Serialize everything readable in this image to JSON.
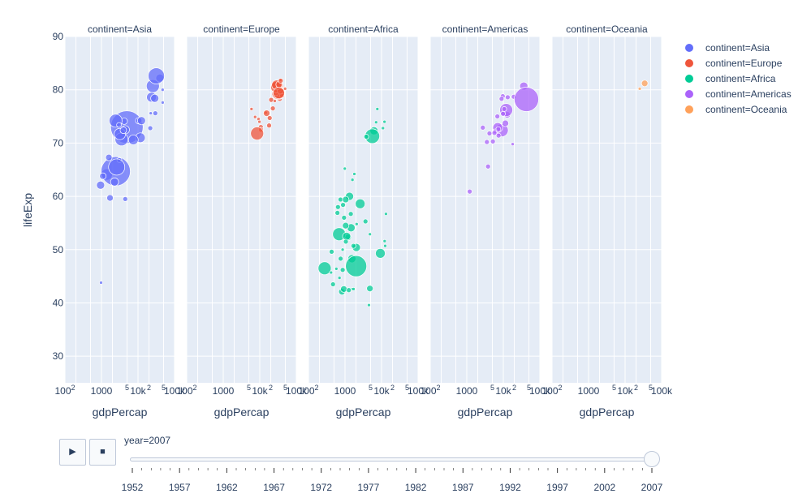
{
  "chart_data": {
    "type": "scatter",
    "subtype": "bubble-faceted",
    "x_label": "gdpPercap",
    "y_label": "lifeExp",
    "x_scale": "log",
    "x_range": [
      100,
      100000
    ],
    "y_range": [
      25,
      90
    ],
    "y_ticks": [
      30,
      40,
      50,
      60,
      70,
      80,
      90
    ],
    "x_tick_labels": [
      {
        "base": "100",
        "sup": "2"
      },
      {
        "base": "1000",
        "sup": ""
      },
      {
        "base": "",
        "sup": "5"
      },
      {
        "base": "10k",
        "sup": ""
      },
      {
        "base": "",
        "sup": "2"
      },
      {
        "base": "",
        "sup": "5"
      },
      {
        "base": "100k",
        "sup": ""
      }
    ],
    "grid": true,
    "legend_position": "right",
    "facets": [
      {
        "title": "continent=Asia",
        "legend": "continent=Asia",
        "color": "#636efa",
        "points": [
          [
            974,
            43.8,
            2
          ],
          [
            29796,
            75.6,
            3
          ],
          [
            1391,
            64.1,
            7
          ],
          [
            1713,
            59.7,
            4
          ],
          [
            4959,
            73.0,
            20
          ],
          [
            39725,
            82.2,
            5
          ],
          [
            2452,
            64.7,
            18
          ],
          [
            3541,
            70.7,
            8
          ],
          [
            11606,
            71.0,
            6
          ],
          [
            4471,
            59.5,
            3
          ],
          [
            25523,
            80.7,
            8
          ],
          [
            31656,
            82.6,
            10
          ],
          [
            4519,
            72.5,
            5
          ],
          [
            1593,
            67.3,
            4
          ],
          [
            23348,
            78.6,
            6
          ],
          [
            47307,
            77.6,
            2
          ],
          [
            10461,
            74.2,
            4
          ],
          [
            12452,
            74.2,
            5
          ],
          [
            3096,
            66.8,
            3
          ],
          [
            944,
            62.1,
            5
          ],
          [
            1091,
            63.8,
            4
          ],
          [
            22316,
            75.6,
            2
          ],
          [
            2606,
            65.5,
            10
          ],
          [
            3190,
            71.7,
            7
          ],
          [
            21655,
            72.8,
            3
          ],
          [
            47143,
            80.0,
            2
          ],
          [
            3970,
            72.4,
            4
          ],
          [
            4185,
            74.1,
            4
          ],
          [
            28718,
            78.4,
            5
          ],
          [
            7458,
            70.6,
            6
          ],
          [
            2442,
            74.2,
            8
          ],
          [
            3025,
            73.4,
            3
          ],
          [
            2281,
            62.7,
            5
          ]
        ]
      },
      {
        "title": "continent=Europe",
        "legend": "continent=Europe",
        "color": "#EF553B",
        "points": [
          [
            5937,
            76.4,
            2
          ],
          [
            36126,
            79.8,
            3
          ],
          [
            33693,
            79.4,
            4
          ],
          [
            7446,
            74.9,
            2
          ],
          [
            10681,
            73.0,
            3
          ],
          [
            14619,
            75.7,
            2
          ],
          [
            22833,
            76.5,
            3
          ],
          [
            35278,
            78.3,
            3
          ],
          [
            33207,
            79.3,
            3
          ],
          [
            30470,
            80.7,
            7
          ],
          [
            32170,
            79.4,
            8
          ],
          [
            27538,
            79.5,
            4
          ],
          [
            18009,
            73.3,
            3
          ],
          [
            36181,
            81.8,
            2
          ],
          [
            40676,
            78.9,
            3
          ],
          [
            28570,
            80.5,
            7
          ],
          [
            9254,
            74.5,
            2
          ],
          [
            36798,
            79.8,
            4
          ],
          [
            49357,
            80.2,
            2
          ],
          [
            15390,
            75.6,
            4
          ],
          [
            20510,
            78.1,
            3
          ],
          [
            10808,
            72.5,
            3
          ],
          [
            9787,
            74.0,
            2
          ],
          [
            18678,
            74.7,
            3
          ],
          [
            25768,
            77.9,
            2
          ],
          [
            28821,
            80.9,
            6
          ],
          [
            33860,
            81.0,
            4
          ],
          [
            37506,
            81.7,
            3
          ],
          [
            8458,
            71.8,
            8
          ],
          [
            33203,
            79.4,
            7
          ]
        ]
      },
      {
        "title": "continent=Africa",
        "legend": "continent=Africa",
        "color": "#00cc96",
        "points": [
          [
            6223,
            72.3,
            5
          ],
          [
            4797,
            42.7,
            4
          ],
          [
            1441,
            56.7,
            3
          ],
          [
            12570,
            50.7,
            2
          ],
          [
            1217,
            52.3,
            4
          ],
          [
            430,
            49.6,
            3
          ],
          [
            2042,
            50.4,
            5
          ],
          [
            706,
            44.7,
            2
          ],
          [
            1704,
            50.7,
            3
          ],
          [
            986,
            65.2,
            2
          ],
          [
            277,
            46.5,
            8
          ],
          [
            3633,
            55.3,
            3
          ],
          [
            1544,
            48.3,
            5
          ],
          [
            2082,
            54.8,
            2
          ],
          [
            5581,
            71.3,
            9
          ],
          [
            12154,
            51.6,
            2
          ],
          [
            641,
            58.0,
            3
          ],
          [
            690,
            52.9,
            8
          ],
          [
            13206,
            56.7,
            2
          ],
          [
            753,
            59.4,
            3
          ],
          [
            1327,
            60.0,
            5
          ],
          [
            942,
            56.0,
            3
          ],
          [
            579,
            46.4,
            2
          ],
          [
            1463,
            54.1,
            5
          ],
          [
            1569,
            42.6,
            2
          ],
          [
            415,
            45.7,
            2
          ],
          [
            12057,
            74.0,
            2
          ],
          [
            1045,
            59.4,
            4
          ],
          [
            759,
            48.3,
            3
          ],
          [
            1042,
            54.5,
            4
          ],
          [
            1803,
            64.2,
            2
          ],
          [
            10957,
            72.8,
            2
          ],
          [
            3820,
            71.2,
            3
          ],
          [
            824,
            42.1,
            4
          ],
          [
            4811,
            52.9,
            2
          ],
          [
            620,
            56.9,
            3
          ],
          [
            2013,
            46.9,
            13
          ],
          [
            7670,
            76.4,
            2
          ],
          [
            863,
            46.2,
            3
          ],
          [
            1598,
            63.1,
            2
          ],
          [
            1712,
            42.6,
            2
          ],
          [
            862,
            50.0,
            2
          ],
          [
            926,
            42.6,
            4
          ],
          [
            9270,
            49.3,
            6
          ],
          [
            2602,
            58.6,
            6
          ],
          [
            4513,
            39.6,
            2
          ],
          [
            1107,
            52.5,
            5
          ],
          [
            883,
            58.4,
            3
          ],
          [
            7093,
            73.9,
            2
          ],
          [
            1056,
            51.5,
            3
          ],
          [
            1271,
            42.4,
            3
          ],
          [
            470,
            43.5,
            3
          ]
        ]
      },
      {
        "title": "continent=Americas",
        "legend": "continent=Americas",
        "color": "#ab63fa",
        "points": [
          [
            12779,
            75.3,
            4
          ],
          [
            3822,
            65.6,
            3
          ],
          [
            9066,
            72.4,
            8
          ],
          [
            36319,
            80.7,
            5
          ],
          [
            13172,
            78.6,
            3
          ],
          [
            7007,
            72.9,
            6
          ],
          [
            9645,
            78.8,
            3
          ],
          [
            8948,
            78.3,
            3
          ],
          [
            6025,
            72.2,
            3
          ],
          [
            6873,
            75.0,
            3
          ],
          [
            5728,
            71.9,
            3
          ],
          [
            5186,
            70.3,
            3
          ],
          [
            1202,
            60.9,
            3
          ],
          [
            3548,
            70.2,
            3
          ],
          [
            7321,
            72.6,
            3
          ],
          [
            11978,
            76.2,
            8
          ],
          [
            2749,
            72.9,
            3
          ],
          [
            9809,
            75.5,
            3
          ],
          [
            4173,
            71.8,
            3
          ],
          [
            7408,
            71.4,
            3
          ],
          [
            19328,
            78.7,
            3
          ],
          [
            18009,
            69.8,
            2
          ],
          [
            42952,
            78.2,
            15
          ],
          [
            10611,
            76.4,
            3
          ],
          [
            11416,
            73.7,
            4
          ]
        ]
      },
      {
        "title": "continent=Oceania",
        "legend": "continent=Oceania",
        "color": "#FFA15A",
        "points": [
          [
            34435,
            81.2,
            4
          ],
          [
            25185,
            80.2,
            2
          ]
        ]
      }
    ],
    "slider": {
      "current_label": "year=2007",
      "steps": [
        "1952",
        "1957",
        "1962",
        "1967",
        "1972",
        "1977",
        "1982",
        "1987",
        "1992",
        "1997",
        "2002",
        "2007"
      ],
      "active_index": 11
    }
  },
  "controls": {
    "play_icon": "▶",
    "stop_icon": "■"
  }
}
